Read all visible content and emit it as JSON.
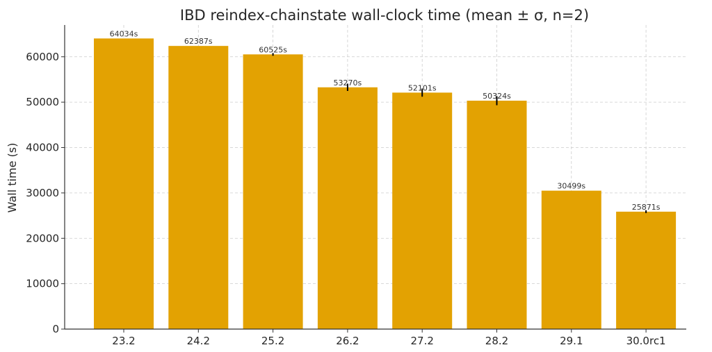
{
  "chart_data": {
    "type": "bar",
    "title": "IBD reindex-chainstate wall-clock time (mean ± σ, n=2)",
    "xlabel": "",
    "ylabel": "Wall time (s)",
    "categories": [
      "23.2",
      "24.2",
      "25.2",
      "26.2",
      "27.2",
      "28.2",
      "29.1",
      "30.0rc1"
    ],
    "values": [
      64034,
      62387,
      60525,
      53270,
      52101,
      50324,
      30499,
      25871
    ],
    "errors": [
      0,
      0,
      300,
      800,
      900,
      1000,
      0,
      300
    ],
    "data_labels": [
      "64034s",
      "62387s",
      "60525s",
      "53270s",
      "52101s",
      "50324s",
      "30499s",
      "25871s"
    ],
    "ylim": [
      0,
      67000
    ],
    "yticks": [
      0,
      10000,
      20000,
      30000,
      40000,
      50000,
      60000
    ],
    "grid": true,
    "legend": "none",
    "colors": {
      "bar": "#E3A202",
      "error": "#000000",
      "grid": "#cccccc",
      "axis": "#333333"
    }
  }
}
